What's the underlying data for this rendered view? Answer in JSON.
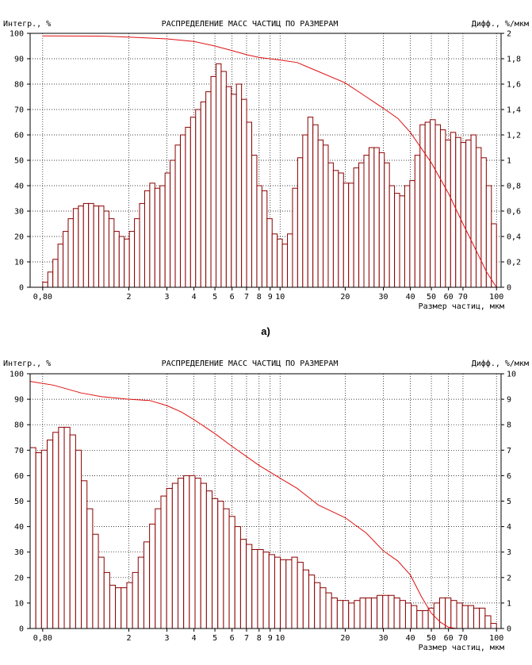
{
  "caption_a": "а)",
  "chart_data": [
    {
      "type": "bar",
      "panel": "a",
      "title": "РАСПРЕДЕЛЕНИЕ МАСС ЧАСТИЦ ПО РАЗМЕРАМ",
      "ylabel_left": "Интегр., %",
      "ylabel_right": "Дифф., %/мкм",
      "xlabel": "Размер частиц, мкм",
      "xscale": "log",
      "xlim": [
        0.7,
        105
      ],
      "ylim_left": [
        0,
        100
      ],
      "ylim_right": [
        0,
        2
      ],
      "left_ticks": [
        "0",
        "10",
        "20",
        "30",
        "40",
        "50",
        "60",
        "70",
        "80",
        "90",
        "100"
      ],
      "right_ticks": [
        "0",
        "0,2",
        "0,4",
        "0,6",
        "0,8",
        "1",
        "1,2",
        "1,4",
        "1,6",
        "1,8",
        "2"
      ],
      "x_ticks": [
        {
          "v": 0.8,
          "t": "0,80"
        },
        {
          "v": 2,
          "t": "2"
        },
        {
          "v": 3,
          "t": "3"
        },
        {
          "v": 4,
          "t": "4"
        },
        {
          "v": 5,
          "t": "5"
        },
        {
          "v": 6,
          "t": "6"
        },
        {
          "v": 7,
          "t": "7"
        },
        {
          "v": 8,
          "t": "8"
        },
        {
          "v": 9,
          "t": "9"
        },
        {
          "v": 10,
          "t": "10"
        },
        {
          "v": 20,
          "t": "20"
        },
        {
          "v": 30,
          "t": "30"
        },
        {
          "v": 40,
          "t": "40"
        },
        {
          "v": 50,
          "t": "50"
        },
        {
          "v": 60,
          "t": "60"
        },
        {
          "v": 70,
          "t": "70"
        },
        {
          "v": 100,
          "t": "100"
        }
      ],
      "bin_range": [
        0.8,
        100
      ],
      "bar_values": [
        2,
        6,
        11,
        17,
        22,
        27,
        31,
        32,
        33,
        33,
        32,
        32,
        30,
        27,
        22,
        20,
        19,
        22,
        27,
        33,
        38,
        41,
        39,
        40,
        45,
        50,
        56,
        60,
        63,
        67,
        70,
        73,
        77,
        83,
        88,
        85,
        79,
        76,
        80,
        74,
        65,
        52,
        40,
        38,
        27,
        21,
        19,
        17,
        21,
        39,
        51,
        60,
        67,
        64,
        58,
        56,
        49,
        46,
        45,
        41,
        41,
        47,
        49,
        52,
        55,
        55,
        53,
        49,
        40,
        37,
        36,
        40,
        42,
        52,
        64,
        65,
        66,
        64,
        62,
        58,
        61,
        59,
        57,
        58,
        60,
        55,
        51,
        40,
        25
      ],
      "integral_curve": [
        {
          "x": 0.8,
          "y": 99.0
        },
        {
          "x": 1.5,
          "y": 98.9
        },
        {
          "x": 2.0,
          "y": 98.5
        },
        {
          "x": 3.0,
          "y": 97.8
        },
        {
          "x": 4.0,
          "y": 96.8
        },
        {
          "x": 5.0,
          "y": 95.0
        },
        {
          "x": 6.0,
          "y": 93.2
        },
        {
          "x": 7.0,
          "y": 91.6
        },
        {
          "x": 8.0,
          "y": 90.5
        },
        {
          "x": 10.0,
          "y": 89.5
        },
        {
          "x": 12.0,
          "y": 88.5
        },
        {
          "x": 15.0,
          "y": 85.0
        },
        {
          "x": 20.0,
          "y": 80.5
        },
        {
          "x": 25.0,
          "y": 75.0
        },
        {
          "x": 30.0,
          "y": 70.5
        },
        {
          "x": 35.0,
          "y": 66.5
        },
        {
          "x": 40.0,
          "y": 61.0
        },
        {
          "x": 50.0,
          "y": 49.0
        },
        {
          "x": 60.0,
          "y": 37.0
        },
        {
          "x": 70.0,
          "y": 25.0
        },
        {
          "x": 80.0,
          "y": 15.0
        },
        {
          "x": 90.0,
          "y": 6.0
        },
        {
          "x": 100.0,
          "y": 0.0
        }
      ]
    },
    {
      "type": "bar",
      "panel": "b",
      "title": "РАСПРЕДЕЛЕНИЕ МАСС ЧАСТИЦ ПО РАЗМЕРАМ",
      "ylabel_left": "Интегр., %",
      "ylabel_right": "Дифф., %/мкм",
      "xlabel": "Размер частиц, мкм",
      "xscale": "log",
      "xlim": [
        0.7,
        105
      ],
      "ylim_left": [
        0,
        100
      ],
      "ylim_right": [
        0,
        10
      ],
      "left_ticks": [
        "0",
        "10",
        "20",
        "30",
        "40",
        "50",
        "60",
        "70",
        "80",
        "90",
        "100"
      ],
      "right_ticks": [
        "0",
        "1",
        "2",
        "3",
        "4",
        "5",
        "6",
        "7",
        "8",
        "9",
        "10"
      ],
      "x_ticks": [
        {
          "v": 0.8,
          "t": "0,80"
        },
        {
          "v": 2,
          "t": "2"
        },
        {
          "v": 3,
          "t": "3"
        },
        {
          "v": 4,
          "t": "4"
        },
        {
          "v": 5,
          "t": "5"
        },
        {
          "v": 6,
          "t": "6"
        },
        {
          "v": 7,
          "t": "7"
        },
        {
          "v": 8,
          "t": "8"
        },
        {
          "v": 9,
          "t": "9"
        },
        {
          "v": 10,
          "t": "10"
        },
        {
          "v": 20,
          "t": "20"
        },
        {
          "v": 30,
          "t": "30"
        },
        {
          "v": 40,
          "t": "40"
        },
        {
          "v": 50,
          "t": "50"
        },
        {
          "v": 60,
          "t": "60"
        },
        {
          "v": 70,
          "t": "70"
        },
        {
          "v": 100,
          "t": "100"
        }
      ],
      "bin_range": [
        0.7,
        100
      ],
      "bar_values": [
        71,
        69,
        70,
        74,
        77,
        79,
        79,
        76,
        70,
        58,
        47,
        37,
        28,
        22,
        17,
        16,
        16,
        18,
        22,
        28,
        34,
        41,
        47,
        52,
        55,
        57,
        59,
        60,
        60,
        59,
        57,
        54,
        51,
        50,
        47,
        44,
        40,
        35,
        33,
        31,
        31,
        30,
        29,
        28,
        27,
        27,
        28,
        26,
        23,
        21,
        18,
        16,
        14,
        12,
        11,
        11,
        10,
        11,
        12,
        12,
        12,
        13,
        13,
        13,
        12,
        11,
        10,
        9,
        7,
        7,
        8,
        10,
        12,
        12,
        11,
        10,
        9,
        9,
        8,
        8,
        5,
        2
      ]
    }
  ],
  "integral_curve_b": [
    {
      "x": 0.7,
      "y": 97.0
    },
    {
      "x": 0.9,
      "y": 95.5
    },
    {
      "x": 1.2,
      "y": 92.5
    },
    {
      "x": 1.5,
      "y": 91.0
    },
    {
      "x": 2.0,
      "y": 90.0
    },
    {
      "x": 2.5,
      "y": 89.5
    },
    {
      "x": 3.0,
      "y": 87.5
    },
    {
      "x": 3.5,
      "y": 85.0
    },
    {
      "x": 4.0,
      "y": 82.0
    },
    {
      "x": 5.0,
      "y": 76.5
    },
    {
      "x": 6.0,
      "y": 71.5
    },
    {
      "x": 7.0,
      "y": 67.5
    },
    {
      "x": 8.0,
      "y": 64.0
    },
    {
      "x": 10.0,
      "y": 59.0
    },
    {
      "x": 12.0,
      "y": 55.0
    },
    {
      "x": 15.0,
      "y": 48.5
    },
    {
      "x": 20.0,
      "y": 43.5
    },
    {
      "x": 25.0,
      "y": 37.5
    },
    {
      "x": 30.0,
      "y": 30.5
    },
    {
      "x": 35.0,
      "y": 26.5
    },
    {
      "x": 40.0,
      "y": 21.0
    },
    {
      "x": 45.0,
      "y": 12.5
    },
    {
      "x": 50.0,
      "y": 6.0
    },
    {
      "x": 55.0,
      "y": 2.5
    },
    {
      "x": 60.0,
      "y": 0.5
    },
    {
      "x": 65.0,
      "y": 0.0
    }
  ]
}
